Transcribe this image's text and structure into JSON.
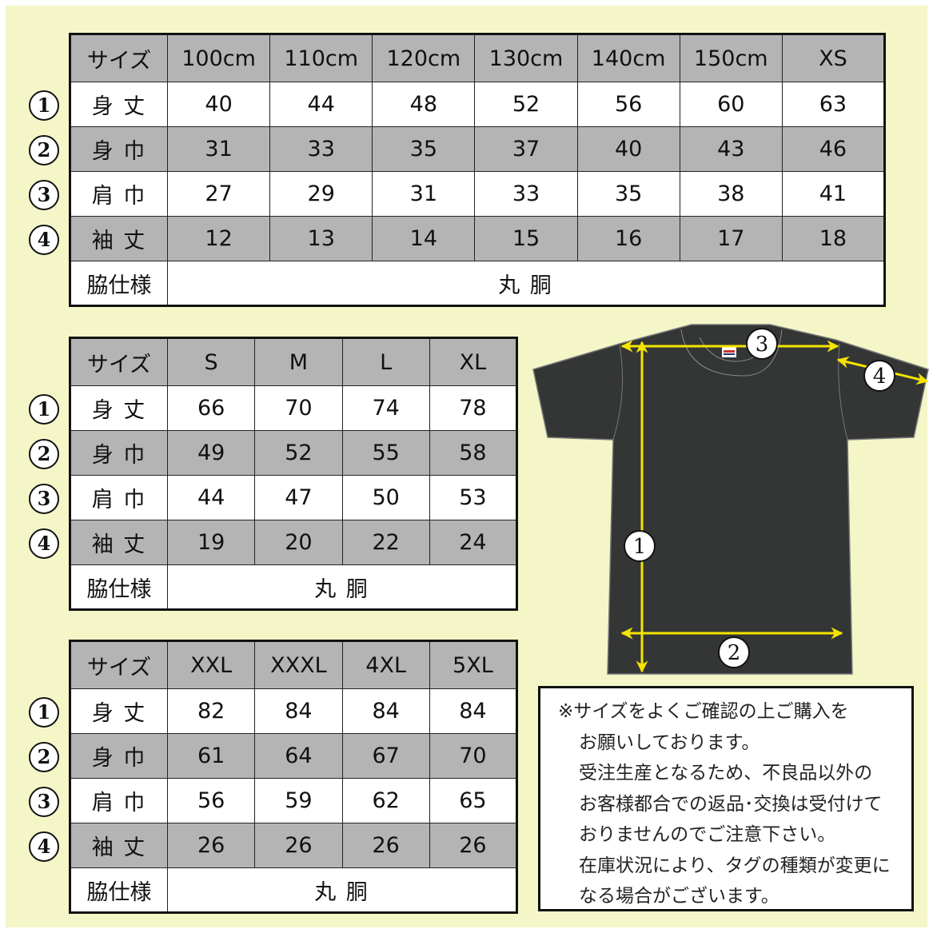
{
  "colors": {
    "background": "#f4f6c8",
    "header_gray": "#b4b4b4",
    "shirt": "#333635",
    "arrow": "#f5e400"
  },
  "row_markers": [
    "1",
    "2",
    "3",
    "4"
  ],
  "row_labels": {
    "size": "サイズ",
    "length": "身 丈",
    "width": "身 巾",
    "shoulder": "肩 巾",
    "sleeve": "袖 丈",
    "side": "脇仕様"
  },
  "tables": [
    {
      "sizes": [
        "100cm",
        "110cm",
        "120cm",
        "130cm",
        "140cm",
        "150cm",
        "XS"
      ],
      "rows": [
        [
          "40",
          "44",
          "48",
          "52",
          "56",
          "60",
          "63"
        ],
        [
          "31",
          "33",
          "35",
          "37",
          "40",
          "43",
          "46"
        ],
        [
          "27",
          "29",
          "31",
          "33",
          "35",
          "38",
          "41"
        ],
        [
          "12",
          "13",
          "14",
          "15",
          "16",
          "17",
          "18"
        ]
      ],
      "side": "丸 胴"
    },
    {
      "sizes": [
        "S",
        "M",
        "L",
        "XL"
      ],
      "rows": [
        [
          "66",
          "70",
          "74",
          "78"
        ],
        [
          "49",
          "52",
          "55",
          "58"
        ],
        [
          "44",
          "47",
          "50",
          "53"
        ],
        [
          "19",
          "20",
          "22",
          "24"
        ]
      ],
      "side": "丸 胴"
    },
    {
      "sizes": [
        "XXL",
        "XXXL",
        "4XL",
        "5XL"
      ],
      "rows": [
        [
          "82",
          "84",
          "84",
          "84"
        ],
        [
          "61",
          "64",
          "67",
          "70"
        ],
        [
          "56",
          "59",
          "62",
          "65"
        ],
        [
          "26",
          "26",
          "26",
          "26"
        ]
      ],
      "side": "丸 胴"
    }
  ],
  "diagram": {
    "labels": [
      "1",
      "2",
      "3",
      "4"
    ]
  },
  "note": {
    "lines": [
      "※サイズをよくご確認の上ご購入を",
      "お願いしております。",
      "受注生産となるため、不良品以外の",
      "お客様都合での返品･交換は受付けて",
      "おりませんのでご注意下さい。",
      "在庫状況により、タグの種類が変更に",
      "なる場合がございます。"
    ]
  }
}
